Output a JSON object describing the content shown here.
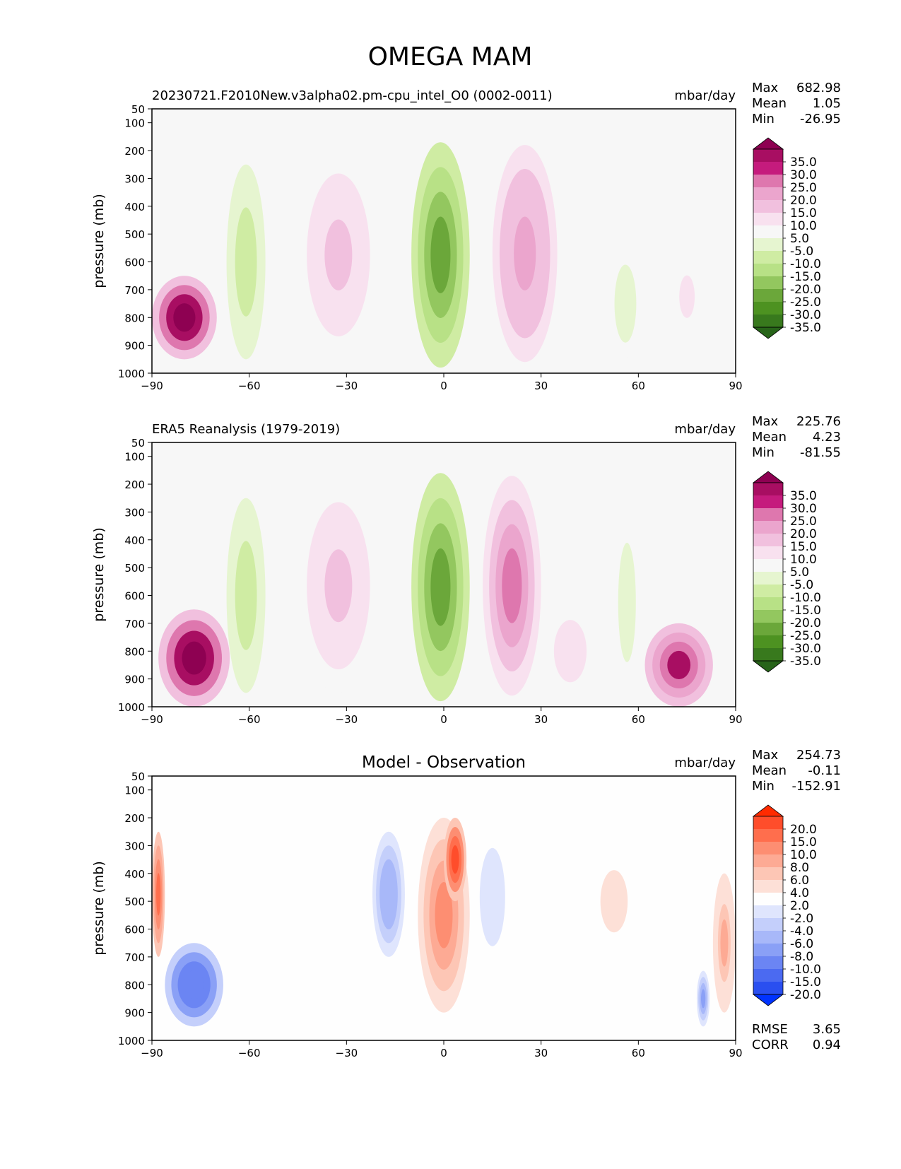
{
  "figure_title": "OMEGA MAM",
  "chart_data": [
    {
      "type": "heatmap",
      "panel": "model",
      "title": "",
      "subtitle_left": "20230721.F2010New.v3alpha02.pm-cpu_intel_O0 (0002-0011)",
      "units": "mbar/day",
      "stats": [
        {
          "label": "Max",
          "value": "682.98"
        },
        {
          "label": "Mean",
          "value": "1.05"
        },
        {
          "label": "Min",
          "value": "-26.95"
        }
      ],
      "xlabel": "",
      "ylabel": "pressure (mb)",
      "xlim": [
        -90,
        90
      ],
      "ylim": [
        1000,
        50
      ],
      "xticks": [
        "−90",
        "−60",
        "−30",
        "0",
        "30",
        "60",
        "90"
      ],
      "yticks": [
        "50",
        "100",
        "200",
        "300",
        "400",
        "500",
        "600",
        "700",
        "800",
        "900",
        "1000"
      ],
      "colorbar": {
        "labels": [
          "35.0",
          "30.0",
          "25.0",
          "20.0",
          "15.0",
          "10.0",
          "5.0",
          "-5.0",
          "-10.0",
          "-15.0",
          "-20.0",
          "-25.0",
          "-30.0",
          "-35.0"
        ],
        "colors": [
          "#8e0152",
          "#a80e62",
          "#c51b7d",
          "#de77ae",
          "#eba5cd",
          "#f1c0de",
          "#f8e1ef",
          "#f7f7f7",
          "#e6f5d0",
          "#cfeca3",
          "#b8e186",
          "#93c75f",
          "#6ba73a",
          "#4d9221",
          "#38791d",
          "#276419"
        ]
      },
      "features": [
        {
          "name": "sh-polar-strong-ascent",
          "lat": [
            -90,
            -70
          ],
          "p": [
            650,
            950
          ],
          "value": 40
        },
        {
          "name": "sh-subtropical-subsidence",
          "lat": [
            -67,
            -55
          ],
          "p": [
            250,
            950
          ],
          "value": -15
        },
        {
          "name": "sh-ascent-band",
          "lat": [
            -45,
            -20
          ],
          "p": [
            200,
            950
          ],
          "value": 12
        },
        {
          "name": "itcz-subsidence",
          "lat": [
            -10,
            8
          ],
          "p": [
            170,
            980
          ],
          "value": -30
        },
        {
          "name": "nh-ascent-band",
          "lat": [
            15,
            35
          ],
          "p": [
            180,
            960
          ],
          "value": 18
        },
        {
          "name": "nh-subsidence",
          "lat": [
            50,
            62
          ],
          "p": [
            500,
            1000
          ],
          "value": -8
        },
        {
          "name": "nh-weak-ascent",
          "lat": [
            68,
            82
          ],
          "p": [
            500,
            950
          ],
          "value": 6
        }
      ]
    },
    {
      "type": "heatmap",
      "panel": "observation",
      "title": "",
      "subtitle_left": "ERA5 Reanalysis (1979-2019)",
      "units": "mbar/day",
      "stats": [
        {
          "label": "Max",
          "value": "225.76"
        },
        {
          "label": "Mean",
          "value": "4.23"
        },
        {
          "label": "Min",
          "value": "-81.55"
        }
      ],
      "xlabel": "",
      "ylabel": "pressure (mb)",
      "xlim": [
        -90,
        90
      ],
      "ylim": [
        1000,
        50
      ],
      "xticks": [
        "−90",
        "−60",
        "−30",
        "0",
        "30",
        "60",
        "90"
      ],
      "yticks": [
        "50",
        "100",
        "200",
        "300",
        "400",
        "500",
        "600",
        "700",
        "800",
        "900",
        "1000"
      ],
      "colorbar": {
        "labels": [
          "35.0",
          "30.0",
          "25.0",
          "20.0",
          "15.0",
          "10.0",
          "5.0",
          "-5.0",
          "-10.0",
          "-15.0",
          "-20.0",
          "-25.0",
          "-30.0",
          "-35.0"
        ],
        "colors": [
          "#8e0152",
          "#a80e62",
          "#c51b7d",
          "#de77ae",
          "#eba5cd",
          "#f1c0de",
          "#f8e1ef",
          "#f7f7f7",
          "#e6f5d0",
          "#cfeca3",
          "#b8e186",
          "#93c75f",
          "#6ba73a",
          "#4d9221",
          "#38791d",
          "#276419"
        ]
      },
      "features": [
        {
          "name": "antarctic-ascent",
          "lat": [
            -88,
            -66
          ],
          "p": [
            650,
            1000
          ],
          "value": 40
        },
        {
          "name": "sh-subsidence",
          "lat": [
            -67,
            -55
          ],
          "p": [
            250,
            950
          ],
          "value": -15
        },
        {
          "name": "sh-ascent-band",
          "lat": [
            -45,
            -20
          ],
          "p": [
            180,
            950
          ],
          "value": 12
        },
        {
          "name": "itcz-subsidence",
          "lat": [
            -10,
            8
          ],
          "p": [
            160,
            980
          ],
          "value": -30
        },
        {
          "name": "nh-ascent-band",
          "lat": [
            12,
            30
          ],
          "p": [
            170,
            960
          ],
          "value": 20
        },
        {
          "name": "nh-lowlevel-ascent",
          "lat": [
            30,
            48
          ],
          "p": [
            600,
            1000
          ],
          "value": 8
        },
        {
          "name": "nh-subsidence",
          "lat": [
            53,
            60
          ],
          "p": [
            350,
            900
          ],
          "value": -10
        },
        {
          "name": "arctic-ascent",
          "lat": [
            62,
            83
          ],
          "p": [
            700,
            1000
          ],
          "value": 30
        }
      ]
    },
    {
      "type": "heatmap",
      "panel": "difference",
      "title": "Model - Observation",
      "subtitle_left": "",
      "units": "mbar/day",
      "stats": [
        {
          "label": "Max",
          "value": "254.73"
        },
        {
          "label": "Mean",
          "value": "-0.11"
        },
        {
          "label": "Min",
          "value": "-152.91"
        }
      ],
      "metrics": [
        {
          "label": "RMSE",
          "value": "3.65"
        },
        {
          "label": "CORR",
          "value": "0.94"
        }
      ],
      "xlabel": "",
      "ylabel": "pressure (mb)",
      "xlim": [
        -90,
        90
      ],
      "ylim": [
        1000,
        50
      ],
      "xticks": [
        "−90",
        "−60",
        "−30",
        "0",
        "30",
        "60",
        "90"
      ],
      "yticks": [
        "50",
        "100",
        "200",
        "300",
        "400",
        "500",
        "600",
        "700",
        "800",
        "900",
        "1000"
      ],
      "colorbar": {
        "labels": [
          "20.0",
          "15.0",
          "10.0",
          "8.0",
          "6.0",
          "4.0",
          "2.0",
          "-2.0",
          "-4.0",
          "-6.0",
          "-8.0",
          "-10.0",
          "-15.0",
          "-20.0"
        ],
        "colors": [
          "#ff2b00",
          "#ff4d2b",
          "#ff6e4d",
          "#fd8e72",
          "#fdaa94",
          "#fdc6b5",
          "#fde0d7",
          "#fefefe",
          "#dfe5fd",
          "#c4cffb",
          "#a8b8f9",
          "#8aa0f6",
          "#6b85f3",
          "#4b6af1",
          "#2a4ff0",
          "#0033ff"
        ]
      },
      "features": [
        {
          "name": "sh-polar-positive",
          "lat": [
            -90,
            -86
          ],
          "p": [
            250,
            700
          ],
          "value": 12
        },
        {
          "name": "sh-polar-mixed-negative",
          "lat": [
            -86,
            -68
          ],
          "p": [
            650,
            950
          ],
          "value": -15
        },
        {
          "name": "sh-midlat-negative",
          "lat": [
            -22,
            -12
          ],
          "p": [
            250,
            700
          ],
          "value": -8
        },
        {
          "name": "tropical-positive",
          "lat": [
            -8,
            8
          ],
          "p": [
            200,
            900
          ],
          "value": 8
        },
        {
          "name": "equatorial-positive-max",
          "lat": [
            0,
            7
          ],
          "p": [
            200,
            500
          ],
          "value": 15
        },
        {
          "name": "nh-tropical-negative",
          "lat": [
            8,
            22
          ],
          "p": [
            170,
            800
          ],
          "value": -3
        },
        {
          "name": "nh-positive",
          "lat": [
            45,
            60
          ],
          "p": [
            300,
            700
          ],
          "value": 3
        },
        {
          "name": "arctic-negative",
          "lat": [
            78,
            82
          ],
          "p": [
            750,
            950
          ],
          "value": -10
        },
        {
          "name": "arctic-positive",
          "lat": [
            83,
            90
          ],
          "p": [
            400,
            900
          ],
          "value": 6
        }
      ]
    }
  ]
}
